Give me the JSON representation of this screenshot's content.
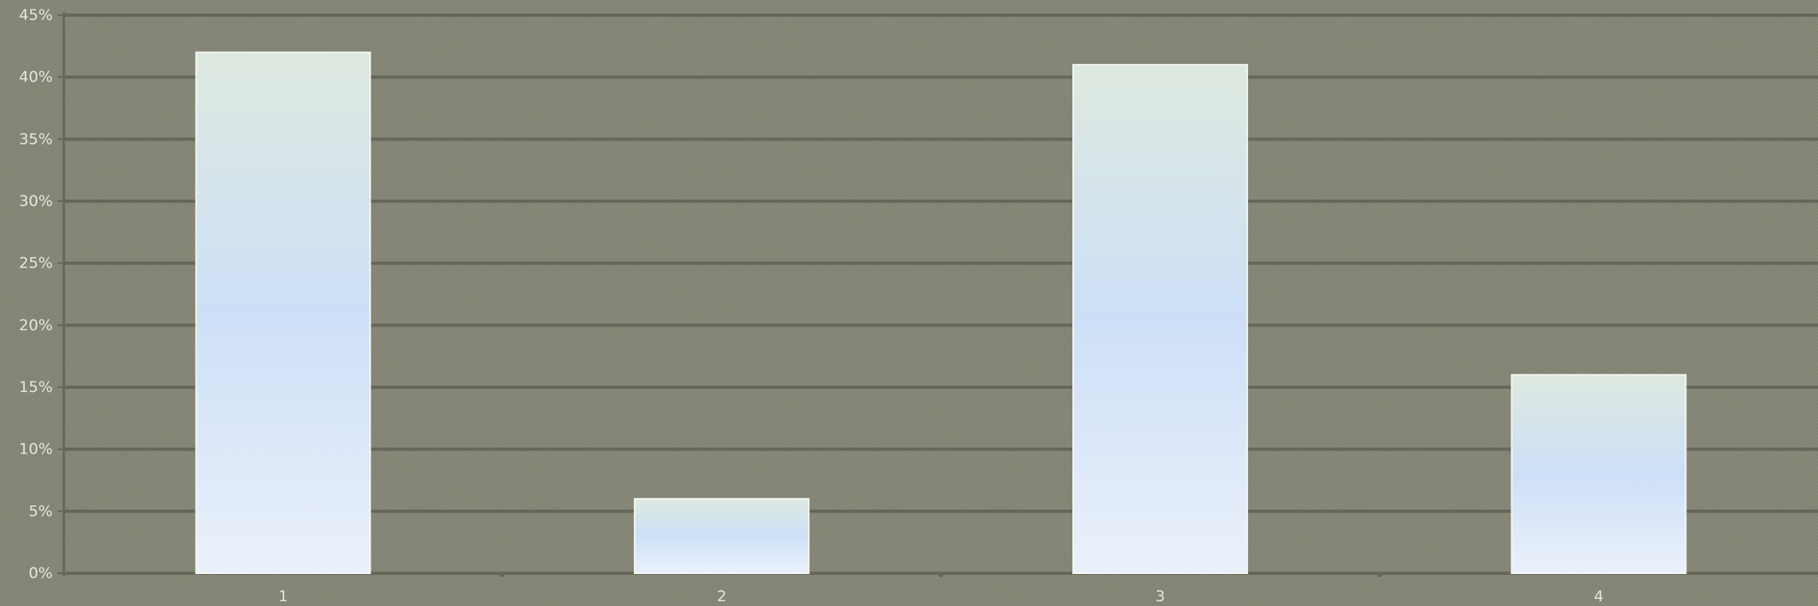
{
  "chart_data": {
    "type": "bar",
    "categories": [
      "1",
      "2",
      "3",
      "4"
    ],
    "values": [
      42,
      6,
      41,
      16
    ],
    "title": "",
    "xlabel": "",
    "ylabel": "",
    "ylim": [
      0,
      45
    ],
    "y_ticks": [
      "0%",
      "5%",
      "10%",
      "15%",
      "20%",
      "25%",
      "30%",
      "35%",
      "40%",
      "45%"
    ],
    "grid": true,
    "legend": "none",
    "colors": {
      "background": "#858676",
      "gridline": "#66675a",
      "bar_top": "#dde9df",
      "bar_mid": "#cddff7",
      "bar_bottom": "#ebf1fb",
      "bar_edge": "#f4f6f0",
      "tick_text": "#e6e6de"
    }
  }
}
